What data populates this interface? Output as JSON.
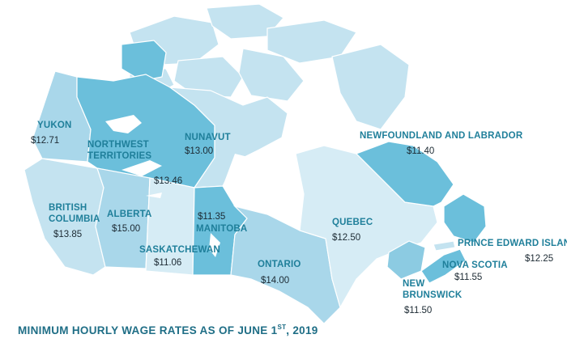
{
  "title": {
    "prefix": "MINIMUM HOURLY WAGE RATES AS OF JUNE 1",
    "superscript": "ST",
    "suffix": ", 2019"
  },
  "colors": {
    "darkest": "#6bbfdb",
    "dark": "#8ccbe2",
    "mid": "#a9d7ea",
    "light": "#c4e3f0",
    "lightest": "#d6ecf5",
    "water": "#ffffff",
    "label": "#1f7f9a",
    "value": "#1c2a33"
  },
  "provinces": [
    {
      "name": "YUKON",
      "wage": "$12.71",
      "shade": "mid"
    },
    {
      "name": "NORTHWEST TERRITORIES",
      "name_line1": "NORTHWEST",
      "name_line2": "TERRITORIES",
      "wage": "$13.46",
      "shade": "darkest"
    },
    {
      "name": "NUNAVUT",
      "wage": "$13.00",
      "shade": "light"
    },
    {
      "name": "BRITISH COLUMBIA",
      "name_line1": "BRITISH",
      "name_line2": "COLUMBIA",
      "wage": "$13.85",
      "shade": "light"
    },
    {
      "name": "ALBERTA",
      "wage": "$15.00",
      "shade": "mid"
    },
    {
      "name": "SASKATCHEWAN",
      "wage": "$11.06",
      "shade": "lightest"
    },
    {
      "name": "MANITOBA",
      "wage": "$11.35",
      "shade": "darkest"
    },
    {
      "name": "ONTARIO",
      "wage": "$14.00",
      "shade": "mid"
    },
    {
      "name": "QUEBEC",
      "wage": "$12.50",
      "shade": "lightest"
    },
    {
      "name": "NEWFOUNDLAND AND LABRADOR",
      "wage": "$11.40",
      "shade": "darkest"
    },
    {
      "name": "NEW BRUNSWICK",
      "name_line1": "NEW",
      "name_line2": "BRUNSWICK",
      "wage": "$11.50",
      "shade": "dark"
    },
    {
      "name": "NOVA SCOTIA",
      "wage": "$11.55",
      "shade": "darkest"
    },
    {
      "name": "PRINCE EDWARD ISLAND",
      "wage": "$12.25",
      "shade": "light"
    }
  ]
}
